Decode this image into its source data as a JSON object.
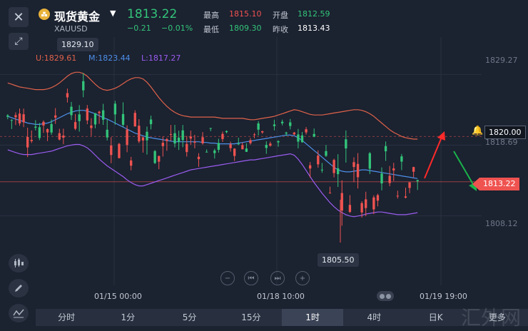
{
  "header": {
    "title": "现货黄金",
    "symbol": "XAUUSD",
    "price": "1813.22",
    "change": "−0.21",
    "change_pct": "−0.01%",
    "high_label": "最高",
    "high": "1815.10",
    "open_label": "开盘",
    "open": "1812.59",
    "low_label": "最低",
    "low": "1809.30",
    "prev_close_label": "昨收",
    "prev_close": "1813.43"
  },
  "indicator": {
    "upper": "U:1829.61",
    "middle": "M:1823.44",
    "lower": "L:1817.27"
  },
  "tooltips": {
    "high_tip": "1829.10",
    "low_tip": "1805.50"
  },
  "y_axis": {
    "ticks": [
      "1829.27",
      "1818.69",
      "1808.12"
    ],
    "alert_tag": "1820.00",
    "price_tag": "1813.22"
  },
  "x_axis": {
    "ticks": [
      "01/15 00:00",
      "01/18 10:00",
      "01/19 19:00"
    ]
  },
  "tabs": [
    "分时",
    "1分",
    "5分",
    "15分",
    "1时",
    "4时",
    "日K",
    "更多"
  ],
  "active_tab": "1时",
  "watermark": "汇外网",
  "colors": {
    "up": "#ef5350",
    "down": "#33c47a",
    "upper_band": "#e0634a",
    "middle_band": "#4d8fe8",
    "lower_band": "#9a5cf0",
    "background": "#1b2230"
  },
  "icons": {
    "close": "close-icon",
    "expand": "expand-icon",
    "candles": "candlestick-icon",
    "draw": "pen-icon",
    "indicator": "indicator-icon",
    "alert": "bell-icon"
  },
  "chart_data": {
    "type": "candlestick",
    "ylim": [
      1802,
      1834
    ],
    "y_ticks": [
      1829.27,
      1818.69,
      1808.12
    ],
    "upper_band": [
      1828.0,
      1827.8,
      1827.6,
      1827.4,
      1827.3,
      1827.2,
      1827.1,
      1827.0,
      1827.0,
      1827.0,
      1827.1,
      1827.3,
      1827.6,
      1828.0,
      1828.5,
      1829.0,
      1829.4,
      1829.6,
      1829.6,
      1829.4,
      1829.0,
      1828.4,
      1827.8,
      1827.3,
      1827.0,
      1826.9,
      1827.0,
      1827.2,
      1827.5,
      1827.9,
      1828.3,
      1828.6,
      1828.8,
      1828.8,
      1828.6,
      1828.1,
      1827.4,
      1826.6,
      1825.8,
      1825.1,
      1824.5,
      1824.0,
      1823.6,
      1823.3,
      1823.1,
      1823.0,
      1822.9,
      1822.9,
      1822.9,
      1822.9,
      1822.9,
      1822.9,
      1822.9,
      1822.8,
      1822.7,
      1822.7,
      1822.7,
      1822.7,
      1822.7,
      1822.7,
      1822.6,
      1822.5,
      1822.5,
      1822.6,
      1822.7,
      1822.8,
      1822.9,
      1823.0,
      1823.2,
      1823.4,
      1823.6,
      1823.8,
      1824.0,
      1823.9,
      1823.7,
      1823.5,
      1823.3,
      1823.2,
      1823.2,
      1823.2,
      1823.3,
      1823.4,
      1823.5,
      1823.6,
      1823.7,
      1823.8,
      1823.9,
      1824.0,
      1824.0,
      1823.9,
      1823.7,
      1823.4,
      1823.0,
      1822.5,
      1822.0,
      1821.5,
      1821.0,
      1820.6,
      1820.3,
      1820.0,
      1819.8,
      1819.7,
      1819.6,
      1819.6
    ],
    "middle_band": [
      1823.0,
      1822.8,
      1822.6,
      1822.4,
      1822.2,
      1822.0,
      1821.9,
      1821.8,
      1821.8,
      1821.9,
      1822.0,
      1822.2,
      1822.5,
      1822.8,
      1823.1,
      1823.4,
      1823.6,
      1823.8,
      1823.9,
      1823.9,
      1823.8,
      1823.6,
      1823.4,
      1823.1,
      1822.8,
      1822.6,
      1822.3,
      1822.0,
      1821.7,
      1821.4,
      1821.1,
      1820.8,
      1820.5,
      1820.3,
      1820.1,
      1819.9,
      1819.8,
      1819.7,
      1819.6,
      1819.5,
      1819.4,
      1819.3,
      1819.2,
      1819.2,
      1819.2,
      1819.2,
      1819.2,
      1819.2,
      1819.2,
      1819.1,
      1819.1,
      1819.0,
      1819.0,
      1818.9,
      1818.9,
      1818.9,
      1818.9,
      1818.9,
      1819.0,
      1819.1,
      1819.2,
      1819.3,
      1819.4,
      1819.5,
      1819.6,
      1819.7,
      1819.8,
      1819.9,
      1820.0,
      1820.1,
      1820.2,
      1820.2,
      1820.1,
      1819.8,
      1819.4,
      1818.9,
      1818.4,
      1817.9,
      1817.4,
      1816.9,
      1816.4,
      1815.9,
      1815.4,
      1815.0,
      1814.8,
      1814.7,
      1814.7,
      1814.8,
      1814.9,
      1815.0,
      1815.0,
      1814.9,
      1814.8,
      1814.7,
      1814.6,
      1814.5,
      1814.4,
      1814.3,
      1814.2,
      1814.1,
      1814.0,
      1813.9,
      1813.8,
      1813.7
    ],
    "lower_band": [
      1818.0,
      1817.8,
      1817.6,
      1817.4,
      1817.3,
      1817.3,
      1817.3,
      1817.4,
      1817.5,
      1817.6,
      1817.7,
      1817.8,
      1818.0,
      1818.2,
      1818.4,
      1818.6,
      1818.7,
      1818.8,
      1818.8,
      1818.6,
      1818.3,
      1817.8,
      1817.2,
      1816.6,
      1816.1,
      1815.6,
      1815.2,
      1814.8,
      1814.4,
      1814.0,
      1813.5,
      1813.1,
      1812.8,
      1812.6,
      1812.6,
      1812.8,
      1813.0,
      1813.2,
      1813.4,
      1813.6,
      1813.8,
      1814.0,
      1814.2,
      1814.4,
      1814.6,
      1814.8,
      1815.0,
      1815.1,
      1815.2,
      1815.3,
      1815.4,
      1815.5,
      1815.6,
      1815.7,
      1815.8,
      1815.9,
      1816.0,
      1816.1,
      1816.2,
      1816.3,
      1816.4,
      1816.5,
      1816.5,
      1816.6,
      1816.7,
      1816.8,
      1816.9,
      1817.0,
      1817.1,
      1817.2,
      1817.3,
      1817.4,
      1817.2,
      1816.6,
      1815.8,
      1814.9,
      1814.0,
      1813.1,
      1812.3,
      1811.5,
      1810.8,
      1810.1,
      1809.5,
      1809.0,
      1808.6,
      1808.3,
      1808.1,
      1808.0,
      1808.1,
      1808.2,
      1808.4,
      1808.5,
      1808.6,
      1808.7,
      1808.7,
      1808.6,
      1808.5,
      1808.4,
      1808.3,
      1808.3,
      1808.3,
      1808.4,
      1808.5,
      1808.6
    ]
  }
}
